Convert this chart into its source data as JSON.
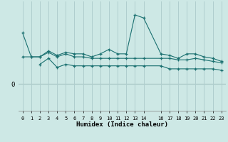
{
  "title": "",
  "xlabel": "Humidex (Indice chaleur)",
  "background_color": "#cde8e5",
  "line_color": "#1a7070",
  "grid_color": "#b0cece",
  "zero_line_color": "#a0c0c0",
  "x_ticks": [
    0,
    1,
    2,
    3,
    4,
    5,
    6,
    7,
    8,
    9,
    10,
    11,
    12,
    13,
    14,
    16,
    17,
    18,
    19,
    20,
    21,
    22,
    23
  ],
  "series1_x": [
    0,
    1,
    2,
    3,
    4,
    5,
    6,
    7,
    8,
    9,
    10,
    11,
    12,
    13,
    14,
    16,
    17,
    18,
    19,
    20,
    21,
    22,
    23
  ],
  "series1_y": [
    34,
    18,
    18,
    22,
    19,
    21,
    20,
    20,
    18,
    20,
    23,
    20,
    20,
    46,
    44,
    20,
    19,
    17,
    20,
    20,
    18,
    17,
    15
  ],
  "series2_x": [
    0,
    1,
    2,
    3,
    4,
    5,
    6,
    7,
    8,
    9,
    10,
    11,
    12,
    13,
    14,
    16,
    17,
    18,
    19,
    20,
    21,
    22,
    23
  ],
  "series2_y": [
    18,
    18,
    18,
    21,
    18,
    20,
    18,
    18,
    17,
    17,
    17,
    17,
    17,
    17,
    17,
    17,
    17,
    16,
    16,
    17,
    16,
    15,
    14
  ],
  "series3_x": [
    2,
    3,
    4,
    5,
    6,
    7,
    8,
    9,
    10,
    11,
    12,
    13,
    14,
    16,
    17,
    18,
    19,
    20,
    21,
    22,
    23
  ],
  "series3_y": [
    13,
    17,
    11,
    13,
    12,
    12,
    12,
    12,
    12,
    12,
    12,
    12,
    12,
    12,
    10,
    10,
    10,
    10,
    10,
    10,
    9
  ],
  "ymin": -18,
  "ymax": 55,
  "figsize": [
    3.2,
    2.0
  ],
  "dpi": 100
}
